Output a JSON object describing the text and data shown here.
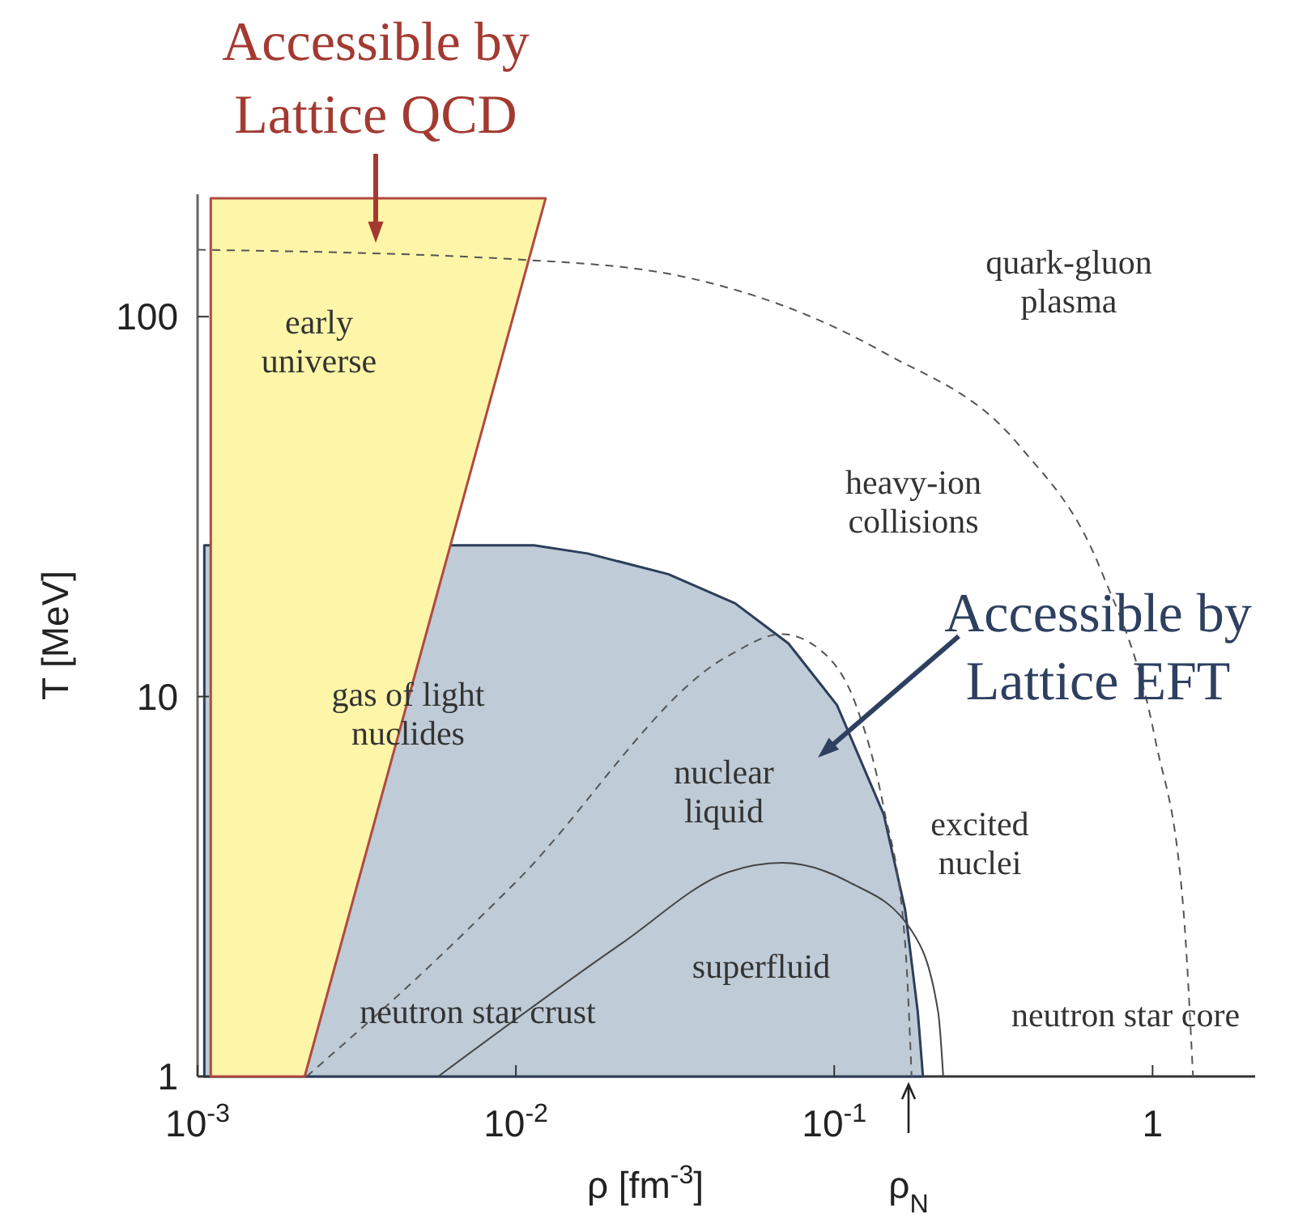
{
  "chart_data": {
    "type": "line",
    "xlabel": "ρ [fm$^{-3}$]",
    "ylabel": "T [MeV]",
    "log": "xy",
    "xlim": [
      0.001,
      2.1
    ],
    "ylim": [
      1,
      210
    ],
    "xticks": [
      {
        "value": 0.001,
        "label": "10$^{-3}$"
      },
      {
        "value": 0.01,
        "label": "10$^{-2}$"
      },
      {
        "value": 0.1,
        "label": "10$^{-1}$"
      },
      1
    ],
    "yticks": [
      1,
      10,
      100
    ],
    "series": [
      {
        "type": "area",
        "color": "#bfcbd6",
        "x": [
          0.00105,
          0.00105,
          0.0114,
          0.0168,
          0.0301,
          0.0488,
          0.0718,
          0.102,
          0.143,
          0.167,
          0.183,
          0.19
        ],
        "values": [
          1,
          25,
          25,
          23.8,
          21,
          17.6,
          13.8,
          9.5,
          4.9,
          2.75,
          1.48,
          1
        ]
      },
      {
        "type": "area",
        "color": "#fdf5a8",
        "x": [
          0.0011,
          0.0011,
          0.0124,
          0.00217
        ],
        "values": [
          1,
          205,
          205,
          1
        ]
      },
      {
        "type": "line",
        "color": "#555555",
        "line_style": "dashed",
        "x": [
          0.001,
          0.0108,
          0.0327,
          0.143,
          0.383,
          0.687,
          1.02,
          1.25,
          1.34
        ],
        "values": [
          150,
          141,
          128,
          80.5,
          45.6,
          21.6,
          7.7,
          2.75,
          1
        ]
      },
      {
        "type": "line",
        "color": "#555555",
        "line_style": "dashed",
        "x": [
          0.0022,
          0.0049,
          0.01,
          0.0465,
          0.0685,
          0.091,
          0.117,
          0.143,
          0.167,
          0.175
        ],
        "values": [
          1,
          1.82,
          3.25,
          12.8,
          14.6,
          13.2,
          9.5,
          5.1,
          2.24,
          1
        ]
      },
      {
        "type": "line",
        "color": "#444444",
        "line_style": "solid",
        "x": [
          0.0057,
          0.0215,
          0.0465,
          0.0685,
          0.111,
          0.175,
          0.212,
          0.22
        ],
        "values": [
          1,
          2.24,
          3.45,
          3.65,
          3.25,
          2.42,
          1.48,
          1
        ]
      }
    ],
    "annotations": [
      "Accessible by\nLattice QCD",
      "Accessible by\nLattice EFT",
      "ρ$_{N}$",
      "early\nuniverse",
      "quark-gluon\nplasma",
      "heavy-ion\ncollisions",
      "gas of light\nnuclides",
      "nuclear\nliquid",
      "excited\nnuclei",
      "superfluid",
      "neutron star crust",
      "neutron star core"
    ]
  }
}
